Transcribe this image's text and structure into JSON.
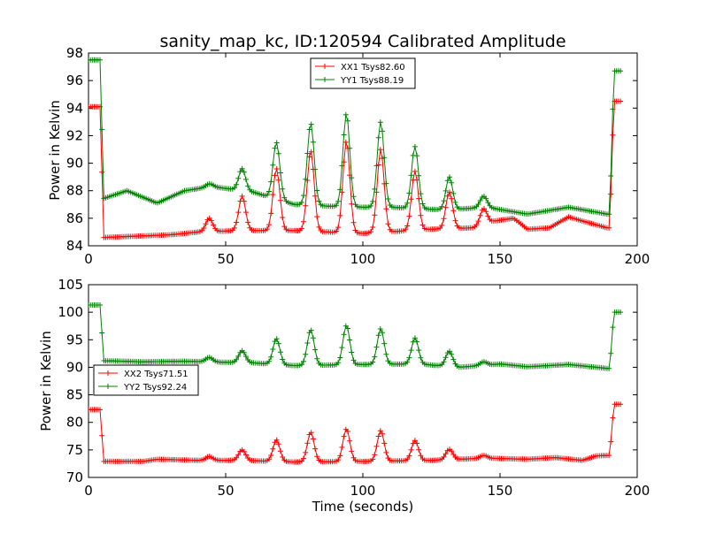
{
  "chart_data": [
    {
      "type": "line",
      "title": "sanity_map_kc, ID:120594 Calibrated Amplitude",
      "xlabel": "",
      "ylabel": "Power in Kelvin",
      "xlim": [
        0,
        200
      ],
      "ylim": [
        84,
        98
      ],
      "xticks": [
        "0",
        "50",
        "100",
        "150",
        "200"
      ],
      "yticks": [
        "84",
        "86",
        "88",
        "90",
        "92",
        "94",
        "96",
        "98"
      ],
      "legend_position": "upper center",
      "grid": false,
      "peak_times": [
        44,
        56,
        68.5,
        81,
        94,
        106.5,
        119,
        131.5,
        144
      ],
      "series": [
        {
          "name": "XX1 Tsys82.60",
          "color": "#ff0000",
          "x_range": [
            0,
            194
          ],
          "start_level": 94.1,
          "base_level": 84.6,
          "end_level": 94.5,
          "drop_time": 4.5,
          "rise_time": 190,
          "peak_values": [
            86.0,
            87.6,
            89.6,
            90.9,
            91.6,
            91.0,
            89.4,
            87.9,
            86.7
          ],
          "baseline_points": [
            [
              5,
              84.6
            ],
            [
              30,
              84.8
            ],
            [
              40,
              85.0
            ],
            [
              55,
              85.1
            ],
            [
              75,
              85.1
            ],
            [
              100,
              84.9
            ],
            [
              125,
              85.2
            ],
            [
              140,
              85.3
            ],
            [
              148,
              85.8
            ],
            [
              155,
              86.0
            ],
            [
              160,
              85.2
            ],
            [
              168,
              85.3
            ],
            [
              175,
              86.1
            ],
            [
              180,
              85.8
            ],
            [
              189,
              85.3
            ]
          ]
        },
        {
          "name": "YY1 Tsys88.19",
          "color": "#008000",
          "x_range": [
            0,
            194
          ],
          "start_level": 97.5,
          "base_level": 87.4,
          "end_level": 96.7,
          "drop_time": 4.5,
          "rise_time": 190,
          "peak_values": [
            88.5,
            89.6,
            91.5,
            92.9,
            93.6,
            93.0,
            91.2,
            89.0,
            87.6
          ],
          "baseline_points": [
            [
              5,
              87.4
            ],
            [
              14,
              88.0
            ],
            [
              25,
              87.1
            ],
            [
              35,
              88.0
            ],
            [
              45,
              88.3
            ],
            [
              60,
              87.9
            ],
            [
              75,
              87.0
            ],
            [
              95,
              86.8
            ],
            [
              110,
              86.8
            ],
            [
              130,
              86.6
            ],
            [
              145,
              86.8
            ],
            [
              160,
              86.3
            ],
            [
              175,
              86.8
            ],
            [
              189,
              86.3
            ]
          ]
        }
      ]
    },
    {
      "type": "line",
      "title": "",
      "xlabel": "Time (seconds)",
      "ylabel": "Power in Kelvin",
      "xlim": [
        0,
        200
      ],
      "ylim": [
        70,
        105
      ],
      "xticks": [
        "0",
        "50",
        "100",
        "150",
        "200"
      ],
      "yticks": [
        "70",
        "75",
        "80",
        "85",
        "90",
        "95",
        "100",
        "105"
      ],
      "legend_position": "center left",
      "grid": false,
      "peak_times": [
        44,
        56,
        68.5,
        81,
        94,
        106.5,
        119,
        131.5,
        144
      ],
      "series": [
        {
          "name": "XX2 Tsys71.51",
          "color": "#ff0000",
          "x_range": [
            0,
            194
          ],
          "start_level": 82.3,
          "base_level": 72.9,
          "end_level": 83.3,
          "drop_time": 4.5,
          "rise_time": 190,
          "peak_values": [
            73.8,
            75.0,
            76.8,
            78.2,
            78.8,
            78.5,
            76.7,
            75.1,
            74.0
          ],
          "baseline_points": [
            [
              5,
              72.9
            ],
            [
              20,
              72.9
            ],
            [
              25,
              73.3
            ],
            [
              40,
              73.1
            ],
            [
              55,
              73.1
            ],
            [
              75,
              72.8
            ],
            [
              100,
              72.9
            ],
            [
              125,
              73.1
            ],
            [
              145,
              73.5
            ],
            [
              160,
              73.3
            ],
            [
              170,
              73.6
            ],
            [
              180,
              73.1
            ],
            [
              185,
              73.9
            ],
            [
              189,
              74.0
            ]
          ]
        },
        {
          "name": "YY2 Tsys92.24",
          "color": "#008000",
          "x_range": [
            0,
            194
          ],
          "start_level": 101.3,
          "base_level": 91.2,
          "end_level": 100.0,
          "drop_time": 4.5,
          "rise_time": 190,
          "peak_values": [
            91.8,
            93.0,
            95.2,
            96.8,
            97.6,
            97.0,
            95.3,
            92.9,
            91.0
          ],
          "baseline_points": [
            [
              5,
              91.2
            ],
            [
              20,
              91.0
            ],
            [
              35,
              91.1
            ],
            [
              50,
              90.9
            ],
            [
              60,
              90.8
            ],
            [
              75,
              90.3
            ],
            [
              100,
              90.5
            ],
            [
              120,
              90.6
            ],
            [
              135,
              90.0
            ],
            [
              150,
              90.6
            ],
            [
              160,
              90.1
            ],
            [
              175,
              90.5
            ],
            [
              189,
              89.8
            ]
          ]
        }
      ]
    }
  ]
}
